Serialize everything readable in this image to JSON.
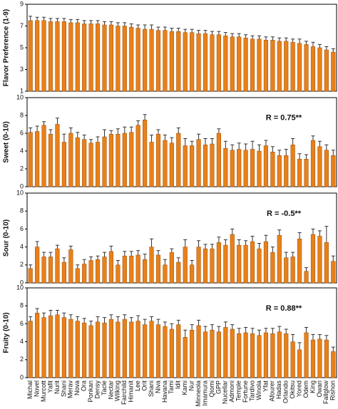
{
  "chart_data": [
    {
      "type": "bar",
      "ylabel": "Flavor Preference (1-9)",
      "color": "#e8801a",
      "ylim": [
        1,
        9
      ],
      "yticks": [
        1,
        3,
        5,
        7,
        9
      ],
      "values": [
        7.5,
        7.5,
        7.5,
        7.4,
        7.4,
        7.4,
        7.3,
        7.3,
        7.2,
        7.2,
        7.2,
        7.1,
        7.1,
        7.0,
        7.0,
        6.9,
        6.8,
        6.7,
        6.7,
        6.6,
        6.6,
        6.5,
        6.5,
        6.4,
        6.4,
        6.3,
        6.3,
        6.2,
        6.2,
        6.1,
        6.0,
        6.0,
        5.9,
        5.8,
        5.8,
        5.7,
        5.7,
        5.6,
        5.6,
        5.5,
        5.4,
        5.3,
        5.1,
        5.0,
        4.8,
        4.6
      ],
      "errors": [
        0.4,
        0.3,
        0.3,
        0.3,
        0.3,
        0.3,
        0.3,
        0.3,
        0.3,
        0.3,
        0.3,
        0.3,
        0.3,
        0.3,
        0.3,
        0.3,
        0.3,
        0.4,
        0.4,
        0.3,
        0.3,
        0.3,
        0.3,
        0.3,
        0.3,
        0.3,
        0.3,
        0.3,
        0.3,
        0.3,
        0.3,
        0.3,
        0.3,
        0.3,
        0.3,
        0.3,
        0.3,
        0.3,
        0.3,
        0.3,
        0.4,
        0.3,
        0.4,
        0.3,
        0.3,
        0.3
      ]
    },
    {
      "type": "bar",
      "ylabel": "Sweet (0-10)",
      "annotation": "R = 0.75**",
      "color": "#e8801a",
      "ylim": [
        0,
        10
      ],
      "yticks": [
        0,
        2,
        4,
        6,
        8,
        10
      ],
      "values": [
        6.1,
        6.2,
        6.9,
        5.9,
        7.0,
        5.0,
        6.0,
        5.5,
        5.3,
        4.9,
        5.0,
        5.6,
        5.9,
        5.9,
        6.0,
        6.1,
        6.9,
        7.5,
        5.0,
        5.9,
        5.2,
        4.9,
        6.0,
        4.6,
        4.6,
        5.3,
        4.7,
        4.8,
        6.0,
        4.3,
        4.1,
        4.2,
        4.1,
        4.2,
        4.0,
        4.6,
        3.9,
        3.5,
        3.5,
        4.7,
        3.1,
        3.1,
        5.2,
        4.5,
        4.1,
        3.5
      ],
      "errors": [
        0.5,
        0.6,
        0.4,
        0.5,
        0.7,
        0.9,
        0.6,
        0.6,
        0.5,
        0.4,
        0.6,
        0.8,
        0.4,
        0.6,
        0.7,
        0.6,
        0.5,
        0.6,
        0.8,
        0.5,
        0.6,
        0.6,
        0.6,
        0.8,
        0.5,
        0.6,
        0.7,
        0.6,
        0.5,
        0.8,
        0.6,
        0.7,
        0.7,
        0.9,
        0.7,
        0.6,
        0.6,
        0.6,
        0.7,
        0.7,
        0.6,
        0.5,
        0.5,
        0.6,
        0.6,
        0.6
      ]
    },
    {
      "type": "bar",
      "ylabel": "Sour (0-10)",
      "annotation": "R = -0.5**",
      "color": "#e8801a",
      "ylim": [
        0,
        10
      ],
      "yticks": [
        0,
        2,
        4,
        6,
        8,
        10
      ],
      "values": [
        1.6,
        4.0,
        2.9,
        2.9,
        3.8,
        2.3,
        3.7,
        1.6,
        2.1,
        2.5,
        2.6,
        2.9,
        3.5,
        2.0,
        3.0,
        3.0,
        3.1,
        2.6,
        4.0,
        3.1,
        2.0,
        3.4,
        2.3,
        4.0,
        2.0,
        4.0,
        3.8,
        3.8,
        4.5,
        4.2,
        5.4,
        4.2,
        4.2,
        4.6,
        3.8,
        4.6,
        3.4,
        5.3,
        2.8,
        2.9,
        4.9,
        1.3,
        5.4,
        5.2,
        4.5,
        2.4
      ],
      "errors": [
        0.4,
        0.6,
        0.5,
        0.5,
        0.4,
        0.5,
        0.4,
        0.4,
        0.5,
        0.4,
        0.4,
        0.5,
        0.6,
        0.5,
        0.5,
        0.5,
        0.5,
        0.6,
        0.9,
        0.5,
        0.6,
        0.4,
        0.5,
        0.8,
        0.5,
        0.7,
        0.5,
        0.5,
        0.6,
        0.6,
        0.6,
        0.6,
        0.5,
        0.6,
        0.6,
        0.7,
        0.6,
        0.6,
        0.6,
        0.5,
        0.7,
        0.4,
        0.6,
        0.6,
        1.8,
        0.6
      ]
    },
    {
      "type": "bar",
      "ylabel": "Fruity (0-10)",
      "annotation": "R = 0.88**",
      "color": "#e8801a",
      "ylim": [
        0,
        10
      ],
      "yticks": [
        0,
        2,
        4,
        6,
        8,
        10
      ],
      "categories": [
        "Michal",
        "Novel",
        "Murcott",
        "Yafit",
        "Nurit",
        "Shani",
        "Merav",
        "Nova",
        "Ora",
        "Ponkan",
        "Densy",
        "Tacle",
        "Nectar",
        "Wilking",
        "Fairchild",
        "Himanit",
        "Lee",
        "Orit",
        "Shani",
        "Niva",
        "Havana",
        "Tami",
        "Idit",
        "Kami",
        "Nur",
        "Minneola",
        "Imamura",
        "Qiomi",
        "GPP",
        "Nucellar",
        "Admoni",
        "Temple",
        "Fortune",
        "Tardivo",
        "Winola",
        "Yfat",
        "Afourer",
        "Hadas",
        "Orlando",
        "Okitsu",
        "Yored",
        "Odem",
        "King",
        "Owari",
        "Fallglow",
        "Rishon"
      ],
      "values": [
        6.3,
        7.2,
        6.7,
        6.9,
        7.0,
        6.7,
        6.5,
        6.3,
        6.1,
        5.8,
        6.2,
        6.1,
        6.5,
        6.2,
        6.5,
        6.2,
        6.3,
        5.9,
        6.3,
        5.9,
        5.7,
        5.4,
        5.9,
        4.5,
        5.3,
        5.8,
        5.1,
        5.3,
        5.1,
        5.6,
        5.4,
        4.9,
        5.0,
        4.9,
        4.7,
        5.0,
        4.9,
        5.1,
        4.9,
        4.0,
        3.1,
        5.0,
        4.2,
        4.3,
        4.2,
        2.9
      ],
      "errors": [
        0.5,
        0.5,
        0.5,
        0.6,
        0.5,
        0.5,
        0.5,
        0.5,
        0.5,
        0.5,
        0.6,
        0.6,
        0.5,
        0.6,
        0.5,
        0.5,
        0.6,
        0.6,
        0.5,
        0.6,
        0.5,
        0.6,
        0.5,
        0.8,
        0.6,
        0.6,
        0.6,
        0.6,
        0.6,
        0.6,
        0.5,
        0.6,
        0.6,
        0.6,
        0.6,
        0.5,
        0.6,
        0.6,
        0.5,
        0.8,
        0.8,
        0.6,
        0.6,
        0.5,
        0.5,
        0.5
      ]
    }
  ]
}
